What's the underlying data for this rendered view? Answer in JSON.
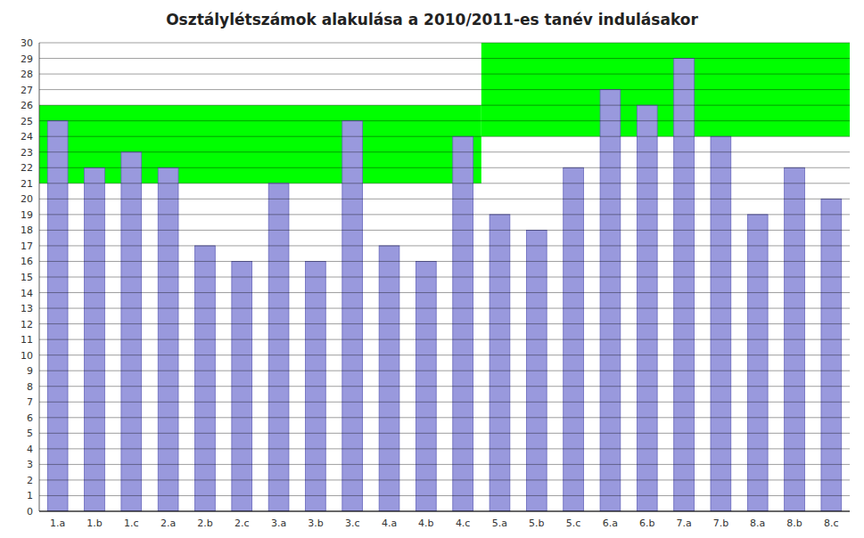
{
  "chart_data": {
    "type": "bar",
    "title": "Osztálylétszámok alakulása a 2010/2011-es tanév indulásakor",
    "categories": [
      "1.a",
      "1.b",
      "1.c",
      "2.a",
      "2.b",
      "2.c",
      "3.a",
      "3.b",
      "3.c",
      "4.a",
      "4.b",
      "4.c",
      "5.a",
      "5.b",
      "5.c",
      "6.a",
      "6.b",
      "7.a",
      "7.b",
      "8.a",
      "8.b",
      "8.c"
    ],
    "values": [
      25,
      22,
      23,
      22,
      17,
      16,
      21,
      16,
      25,
      17,
      16,
      24,
      19,
      18,
      22,
      27,
      26,
      29,
      24,
      19,
      22,
      20
    ],
    "color": "#9999DD",
    "bands": [
      {
        "from": "1.a",
        "to": "4.c",
        "ymin": 21,
        "ymax": 26,
        "color": "#00FF00"
      },
      {
        "from": "5.a",
        "to": "8.c",
        "ymin": 24,
        "ymax": 30,
        "color": "#00FF00"
      }
    ],
    "ylim": [
      0,
      30
    ],
    "yticks": [
      0,
      1,
      2,
      3,
      4,
      5,
      6,
      7,
      8,
      9,
      10,
      11,
      12,
      13,
      14,
      15,
      16,
      17,
      18,
      19,
      20,
      21,
      22,
      23,
      24,
      25,
      26,
      27,
      28,
      29,
      30
    ],
    "grid": true
  }
}
